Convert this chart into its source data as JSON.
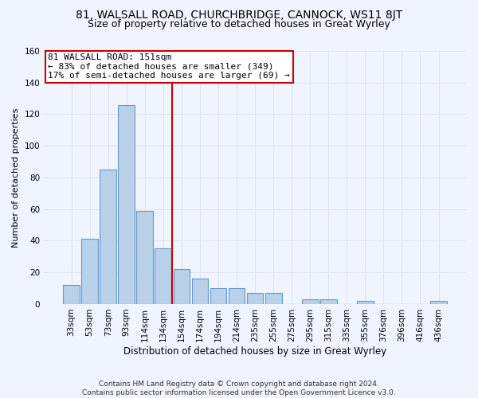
{
  "title1": "81, WALSALL ROAD, CHURCHBRIDGE, CANNOCK, WS11 8JT",
  "title2": "Size of property relative to detached houses in Great Wyrley",
  "xlabel": "Distribution of detached houses by size in Great Wyrley",
  "ylabel": "Number of detached properties",
  "categories": [
    "33sqm",
    "53sqm",
    "73sqm",
    "93sqm",
    "114sqm",
    "134sqm",
    "154sqm",
    "174sqm",
    "194sqm",
    "214sqm",
    "235sqm",
    "255sqm",
    "275sqm",
    "295sqm",
    "315sqm",
    "335sqm",
    "355sqm",
    "376sqm",
    "396sqm",
    "416sqm",
    "436sqm"
  ],
  "values": [
    12,
    41,
    85,
    126,
    59,
    35,
    22,
    16,
    10,
    10,
    7,
    7,
    0,
    3,
    3,
    0,
    2,
    0,
    0,
    0,
    2
  ],
  "bar_color": "#b8d0e8",
  "bar_edge_color": "#6699cc",
  "vline_color": "#cc0000",
  "vline_pos": 6.0,
  "annotation_line1": "81 WALSALL ROAD: 151sqm",
  "annotation_line2": "← 83% of detached houses are smaller (349)",
  "annotation_line3": "17% of semi-detached houses are larger (69) →",
  "ylim": [
    0,
    160
  ],
  "yticks": [
    0,
    20,
    40,
    60,
    80,
    100,
    120,
    140,
    160
  ],
  "footer": "Contains HM Land Registry data © Crown copyright and database right 2024.\nContains public sector information licensed under the Open Government Licence v3.0.",
  "bg_color": "#f0f4ff",
  "grid_color": "#dde5f0",
  "title1_fontsize": 10,
  "title2_fontsize": 9,
  "xlabel_fontsize": 8.5,
  "ylabel_fontsize": 8,
  "tick_fontsize": 7.5,
  "footer_fontsize": 6.5,
  "annot_fontsize": 8
}
